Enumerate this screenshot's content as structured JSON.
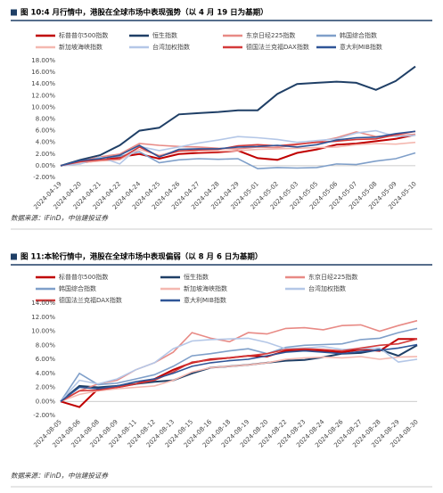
{
  "chart_data": [
    {
      "type": "line",
      "title": "图 10:4 月行情中，港股在全球市场中表现强势（以 4 月 19 日为基期）",
      "source": "数据来源：iFinD，中信建投证券",
      "categories": [
        "2024-04-19",
        "2024-04-20",
        "2024-04-21",
        "2024-04-22",
        "2024-04-24",
        "2024-04-25",
        "2024-04-26",
        "2024-04-27",
        "2024-04-28",
        "2024-04-29",
        "2024-05-01",
        "2024-05-02",
        "2024-05-03",
        "2024-05-05",
        "2024-05-06",
        "2024-05-07",
        "2024-05-08",
        "2024-05-09",
        "2024-05-10"
      ],
      "ylim": [
        -2,
        18
      ],
      "yticks": [
        {
          "value": -2,
          "label": "-2.00%"
        },
        {
          "value": 0,
          "label": "0.00%"
        },
        {
          "value": 2,
          "label": "2.00%"
        },
        {
          "value": 4,
          "label": "4.00%"
        },
        {
          "value": 6,
          "label": "6.00%"
        },
        {
          "value": 8,
          "label": "8.00%"
        },
        {
          "value": 10,
          "label": "10.00%"
        },
        {
          "value": 12,
          "label": "12.00%"
        },
        {
          "value": 14,
          "label": "14.00%"
        },
        {
          "value": 16,
          "label": "16.00%"
        },
        {
          "value": 18,
          "label": "18.00%"
        }
      ],
      "series": [
        {
          "name": "标普普尔500指数",
          "color": "#c00000",
          "values": [
            0,
            0.5,
            0.9,
            1.5,
            2,
            1.2,
            2,
            2.2,
            2.3,
            2.6,
            1.3,
            1.0,
            2.2,
            2.8,
            3.6,
            3.8,
            4.2,
            4.6,
            5.3
          ]
        },
        {
          "name": "恒生指数",
          "color": "#1f3f66",
          "values": [
            0,
            1,
            1.8,
            3.5,
            6,
            6.5,
            8.8,
            9,
            9.2,
            9.5,
            9.5,
            12.3,
            14,
            14.2,
            14.4,
            14.2,
            13,
            14.5,
            17
          ]
        },
        {
          "name": "东京日经225指数",
          "color": "#e88a85",
          "values": [
            0,
            0.8,
            1.5,
            2,
            3.8,
            3.5,
            3.3,
            3.2,
            3,
            2.9,
            3.2,
            3.1,
            3.6,
            4.1,
            4.8,
            5.8,
            5.0,
            5.1,
            5.4
          ]
        },
        {
          "name": "韩国综合指数",
          "color": "#7f9fc9",
          "values": [
            0,
            0.6,
            1.3,
            1.6,
            2.4,
            0.5,
            1.0,
            1.2,
            1.1,
            1.2,
            -0.5,
            -0.3,
            -0.4,
            -0.3,
            0.3,
            0.2,
            0.8,
            1.2,
            2.2
          ]
        },
        {
          "name": "新加坡海峡指数",
          "color": "#f4b8b0",
          "values": [
            0,
            0.5,
            0.8,
            1,
            2.8,
            1.8,
            2.6,
            2.4,
            2.5,
            2.6,
            2.8,
            2.9,
            3.0,
            3.1,
            3.2,
            3.6,
            3.8,
            3.7,
            4.0
          ]
        },
        {
          "name": "台湾加权指数",
          "color": "#b4c7e7",
          "values": [
            0,
            0.3,
            1.5,
            0.3,
            3.3,
            2.6,
            3.2,
            3.9,
            4.4,
            5,
            4.8,
            4.5,
            4,
            4.3,
            4.6,
            5.6,
            6.0,
            5.0,
            5.2
          ]
        },
        {
          "name": "德国法兰克福DAX指数",
          "color": "#d43a3a",
          "values": [
            0,
            0.7,
            1,
            1.2,
            3.2,
            1.6,
            2.5,
            2.7,
            2.8,
            3.4,
            3.6,
            3.4,
            3.7,
            4,
            4.2,
            4.5,
            4.6,
            5.3,
            5.9
          ]
        },
        {
          "name": "意大利MIB指数",
          "color": "#2f5597",
          "values": [
            0,
            0.9,
            1.2,
            1.8,
            3.5,
            1.5,
            2.8,
            2.9,
            2.9,
            3.2,
            3.3,
            3.5,
            3.2,
            3.6,
            4.4,
            4.8,
            4.9,
            5.5,
            5.9
          ]
        }
      ]
    },
    {
      "type": "line",
      "title": "图 11:本轮行情中，港股在全球市场中表现偏弱（以 8 月 6 日为基期）",
      "source": "数据来源：iFinD，中信建投证券",
      "categories": [
        "2024-08-05",
        "2024-08-06",
        "2024-08-08",
        "2024-08-09",
        "2024-08-11",
        "2024-08-12",
        "2024-08-13",
        "2024-08-15",
        "2024-08-16",
        "2024-08-18",
        "2024-08-19",
        "2024-08-20",
        "2024-08-22",
        "2024-08-23",
        "2024-08-24",
        "2024-08-26",
        "2024-08-27",
        "2024-08-28",
        "2024-08-29",
        "2024-08-30"
      ],
      "ylim": [
        -2,
        14
      ],
      "yticks": [
        {
          "value": -2,
          "label": "-2.00%"
        },
        {
          "value": 0,
          "label": "0.00%"
        },
        {
          "value": 2,
          "label": "2.00%"
        },
        {
          "value": 4,
          "label": "4.00%"
        },
        {
          "value": 6,
          "label": "6.00%"
        },
        {
          "value": 8,
          "label": "8.00%"
        },
        {
          "value": 10,
          "label": "10.00%"
        },
        {
          "value": 12,
          "label": "12.00%"
        },
        {
          "value": 14,
          "label": "14.00%"
        }
      ],
      "series": [
        {
          "name": "标普普尔500指数",
          "color": "#c00000",
          "values": [
            0,
            -0.8,
            1.8,
            2.0,
            2.5,
            3.2,
            4.5,
            5.5,
            6.0,
            6.2,
            6.5,
            6.4,
            7.2,
            7.3,
            7.2,
            7.0,
            7.4,
            7.2,
            8.9,
            8.9
          ]
        },
        {
          "name": "恒生指数",
          "color": "#1f3f66",
          "values": [
            0,
            2.2,
            2.0,
            2.2,
            2.5,
            2.8,
            3.0,
            4.0,
            4.8,
            5.0,
            5.2,
            5.5,
            5.8,
            5.9,
            6.3,
            6.8,
            6.9,
            7.4,
            6.5,
            8.0
          ]
        },
        {
          "name": "东京日经225指数",
          "color": "#e88a85",
          "values": [
            0,
            1.5,
            2.5,
            3.0,
            4.5,
            5.5,
            7.0,
            9.8,
            9.0,
            8.5,
            9.8,
            9.6,
            10.4,
            10.5,
            10.2,
            10.8,
            10.9,
            10.0,
            10.8,
            11.5
          ]
        },
        {
          "name": "韩国综合指数",
          "color": "#7f9fc9",
          "values": [
            0,
            4.0,
            2.4,
            2.6,
            3.2,
            3.8,
            5.0,
            6.5,
            6.8,
            7.2,
            7.5,
            6.8,
            7.7,
            8.0,
            8.1,
            8.2,
            8.8,
            9.0,
            9.8,
            10.4
          ]
        },
        {
          "name": "新加坡海峡指数",
          "color": "#f4b8b0",
          "values": [
            0,
            1.0,
            1.5,
            1.8,
            2.0,
            2.2,
            3.0,
            4.2,
            4.8,
            5.0,
            5.2,
            5.5,
            6.0,
            6.2,
            6.3,
            6.2,
            6.4,
            6.0,
            6.3,
            6.4
          ]
        },
        {
          "name": "台湾加权指数",
          "color": "#b4c7e7",
          "values": [
            0,
            3.0,
            2.5,
            3.2,
            4.5,
            5.5,
            7.5,
            8.6,
            8.8,
            8.9,
            9.0,
            8.4,
            7.5,
            7.6,
            7.8,
            7.4,
            7.5,
            7.6,
            5.6,
            6.0
          ]
        },
        {
          "name": "德国法兰克福DAX指数",
          "color": "#d43a3a",
          "values": [
            0,
            1.5,
            1.6,
            2.0,
            2.5,
            3.0,
            4.2,
            5.6,
            5.9,
            6.2,
            6.5,
            6.8,
            7.4,
            7.5,
            7.4,
            7.2,
            7.6,
            8.0,
            8.2,
            8.9
          ]
        },
        {
          "name": "意大利MIB指数",
          "color": "#2f5597",
          "values": [
            0,
            2.0,
            1.8,
            2.2,
            2.8,
            3.2,
            4.0,
            5.0,
            5.5,
            5.8,
            6.0,
            6.5,
            7.0,
            7.2,
            7.0,
            6.8,
            7.1,
            7.3,
            7.6,
            8.1
          ]
        }
      ]
    }
  ]
}
